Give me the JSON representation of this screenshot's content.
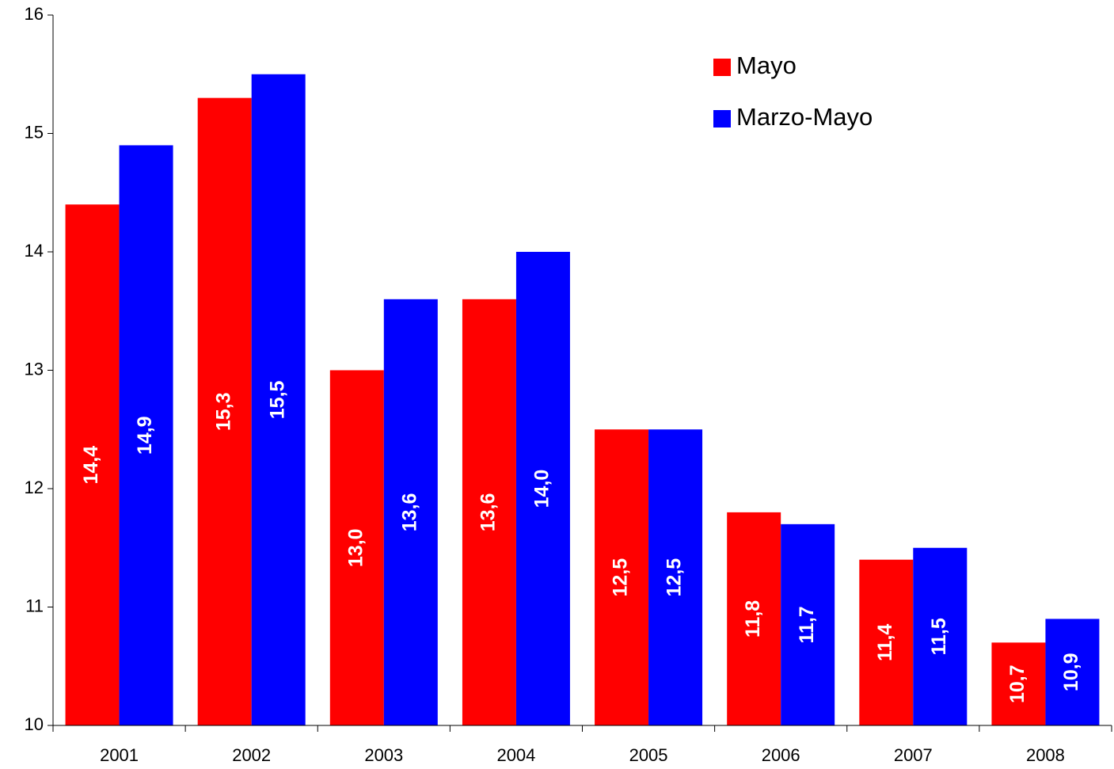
{
  "chart_data": {
    "type": "bar",
    "categories": [
      "2001",
      "2002",
      "2003",
      "2004",
      "2005",
      "2006",
      "2007",
      "2008"
    ],
    "series": [
      {
        "name": "Mayo",
        "color": "#ff0000",
        "values": [
          14.4,
          15.3,
          13.0,
          13.6,
          12.5,
          11.8,
          11.4,
          10.7
        ],
        "value_labels": [
          "14,4",
          "15,3",
          "13,0",
          "13,6",
          "12,5",
          "11,8",
          "11,4",
          "10,7"
        ]
      },
      {
        "name": "Marzo-Mayo",
        "color": "#0000ff",
        "values": [
          14.9,
          15.5,
          13.6,
          14.0,
          12.5,
          11.7,
          11.5,
          10.9
        ],
        "value_labels": [
          "14,9",
          "15,5",
          "13,6",
          "14,0",
          "12,5",
          "11,7",
          "11,5",
          "10,9"
        ]
      }
    ],
    "ylim": [
      10,
      16
    ],
    "yticks": [
      10,
      11,
      12,
      13,
      14,
      15,
      16
    ],
    "legend": "top-right"
  }
}
